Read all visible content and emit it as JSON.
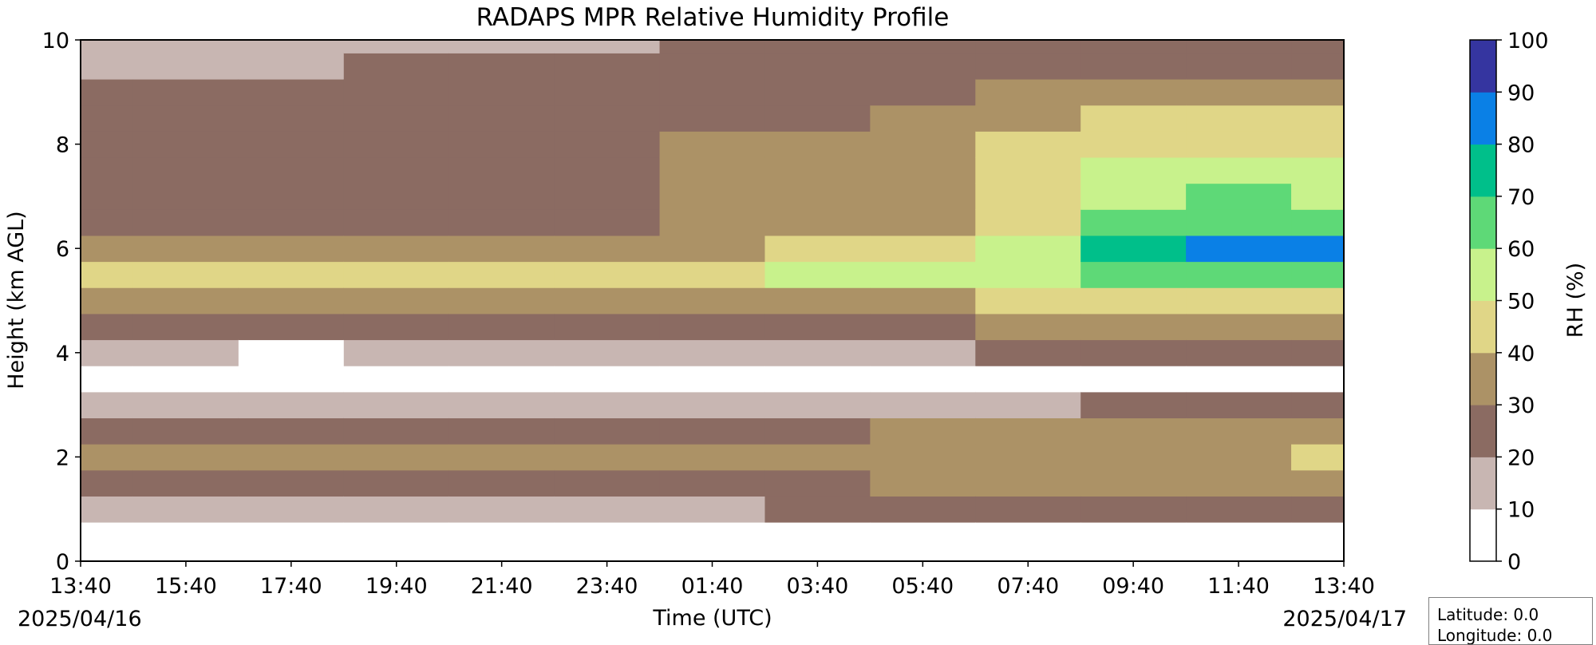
{
  "chart_data": {
    "type": "heatmap",
    "subtype": "filled-contour time-height",
    "title": "RADAPS MPR Relative Humidity Profile",
    "xlabel": "Time (UTC)",
    "ylabel": "Height (km AGL)",
    "x_ticks": [
      "13:40",
      "15:40",
      "17:40",
      "19:40",
      "21:40",
      "23:40",
      "01:40",
      "03:40",
      "05:40",
      "07:40",
      "09:40",
      "11:40",
      "13:40"
    ],
    "y_ticks": [
      "0",
      "2",
      "4",
      "6",
      "8",
      "10"
    ],
    "ylim": [
      0,
      10
    ],
    "start_date": "2025/04/16",
    "end_date": "2025/04/17",
    "colorbar": {
      "label": "RH (%)",
      "levels": [
        0,
        10,
        20,
        30,
        40,
        50,
        60,
        70,
        80,
        90,
        100
      ],
      "colors": [
        "#ffffff",
        "#c8b6b2",
        "#8b6b62",
        "#ac9266",
        "#e0d687",
        "#c8f28c",
        "#5ed977",
        "#00bf8a",
        "#0a80e6",
        "#3535a0"
      ]
    },
    "z_rh_percent_by_x_tick": [
      [
        5,
        5,
        15,
        25,
        35,
        25,
        15,
        8,
        12,
        25,
        30,
        45,
        35,
        25,
        25,
        25,
        25,
        25,
        25,
        15,
        15
      ],
      [
        5,
        5,
        15,
        25,
        35,
        25,
        15,
        8,
        12,
        25,
        30,
        45,
        35,
        25,
        25,
        25,
        25,
        25,
        25,
        15,
        15
      ],
      [
        5,
        5,
        15,
        25,
        35,
        25,
        15,
        5,
        8,
        22,
        30,
        45,
        35,
        25,
        25,
        25,
        25,
        25,
        25,
        15,
        15
      ],
      [
        5,
        5,
        15,
        25,
        35,
        25,
        15,
        5,
        10,
        22,
        30,
        45,
        35,
        25,
        25,
        25,
        25,
        25,
        25,
        25,
        15
      ],
      [
        5,
        5,
        15,
        25,
        35,
        25,
        12,
        5,
        10,
        22,
        30,
        45,
        35,
        25,
        25,
        25,
        25,
        25,
        25,
        25,
        15
      ],
      [
        5,
        5,
        15,
        25,
        35,
        25,
        15,
        5,
        10,
        25,
        35,
        45,
        35,
        25,
        25,
        25,
        25,
        25,
        25,
        25,
        15
      ],
      [
        5,
        5,
        15,
        25,
        35,
        25,
        15,
        5,
        10,
        25,
        35,
        45,
        35,
        35,
        35,
        35,
        35,
        25,
        25,
        25,
        25
      ],
      [
        5,
        5,
        25,
        25,
        35,
        25,
        15,
        8,
        15,
        25,
        35,
        55,
        45,
        35,
        35,
        35,
        35,
        25,
        25,
        25,
        25
      ],
      [
        5,
        5,
        25,
        35,
        35,
        35,
        15,
        8,
        15,
        25,
        35,
        55,
        45,
        35,
        35,
        35,
        35,
        35,
        25,
        25,
        25
      ],
      [
        5,
        5,
        25,
        35,
        35,
        35,
        15,
        8,
        25,
        35,
        45,
        55,
        55,
        45,
        45,
        45,
        45,
        35,
        35,
        25,
        25
      ],
      [
        5,
        5,
        25,
        35,
        35,
        35,
        25,
        8,
        25,
        35,
        45,
        65,
        75,
        65,
        55,
        55,
        45,
        45,
        35,
        25,
        25
      ],
      [
        5,
        5,
        25,
        35,
        35,
        35,
        25,
        8,
        25,
        35,
        45,
        65,
        85,
        65,
        65,
        55,
        45,
        45,
        35,
        25,
        25
      ],
      [
        5,
        5,
        25,
        35,
        45,
        35,
        25,
        8,
        25,
        35,
        45,
        65,
        85,
        65,
        55,
        55,
        45,
        45,
        35,
        25,
        25
      ]
    ]
  },
  "info_box": {
    "latitude": "Latitude: 0.0",
    "longitude": "Longitude: 0.0"
  }
}
